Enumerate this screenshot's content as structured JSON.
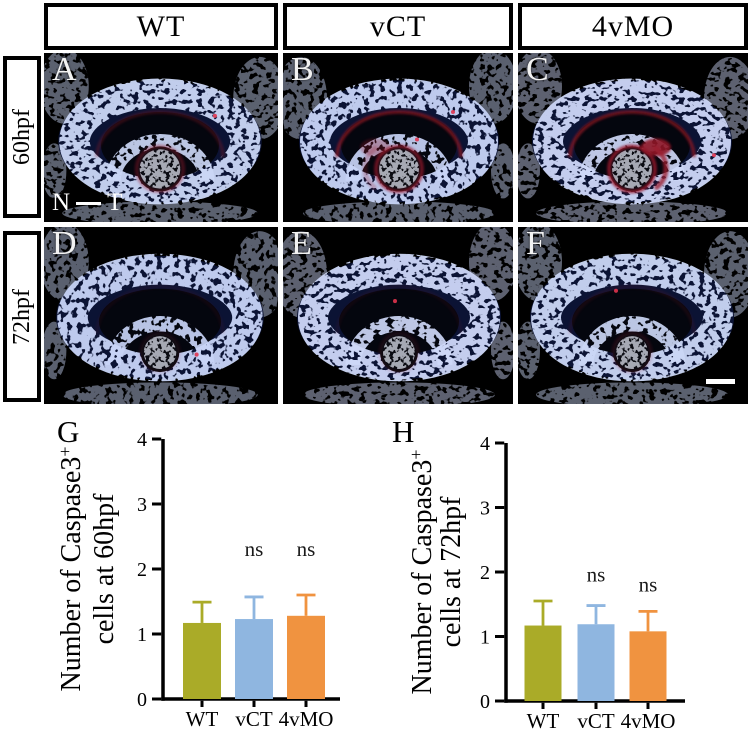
{
  "page_background": "#ffffff",
  "figure": {
    "column_headers": [
      {
        "label": "WT"
      },
      {
        "label": "vCT"
      },
      {
        "label": "4vMO"
      }
    ],
    "row_headers": [
      {
        "label": "60hpf"
      },
      {
        "label": "72hpf"
      }
    ],
    "panels": [
      {
        "letter": "A",
        "row": "60hpf",
        "column": "WT"
      },
      {
        "letter": "B",
        "row": "60hpf",
        "column": "vCT"
      },
      {
        "letter": "C",
        "row": "60hpf",
        "column": "4vMO"
      },
      {
        "letter": "D",
        "row": "72hpf",
        "column": "WT"
      },
      {
        "letter": "E",
        "row": "72hpf",
        "column": "vCT"
      },
      {
        "letter": "F",
        "row": "72hpf",
        "column": "4vMO"
      }
    ],
    "orientation_axis": {
      "left_label": "N",
      "right_label": "T"
    },
    "stain_colors": {
      "nuclei_dapi": "#2a4fd0",
      "caspase3_signal": "#c01830"
    },
    "has_scale_bar_panel": "F"
  },
  "chart_data": [
    {
      "type": "bar",
      "panel_letter": "G",
      "title": "",
      "ylabel": "Number of Caspase3+ cells at 60hpf",
      "ylabel_line1": "Number of Caspase3",
      "ylabel_superscript": "+",
      "ylabel_line2": "cells at 60hpf",
      "xlabel": "",
      "categories": [
        "WT",
        "vCT",
        "4vMO"
      ],
      "values": [
        1.17,
        1.23,
        1.28
      ],
      "errors_up": [
        0.32,
        0.34,
        0.32
      ],
      "bar_colors": [
        "#aaab28",
        "#8fb6e0",
        "#f09340"
      ],
      "axis_color": "#000000",
      "ylim": [
        0,
        4
      ],
      "yticks": [
        0,
        1,
        2,
        3,
        4
      ],
      "grid": false,
      "legend": null,
      "annotations": [
        {
          "category": "vCT",
          "text": "ns",
          "y": 2.2
        },
        {
          "category": "4vMO",
          "text": "ns",
          "y": 2.2
        }
      ]
    },
    {
      "type": "bar",
      "panel_letter": "H",
      "title": "",
      "ylabel": "Number of Caspase3+ cells at 72hpf",
      "ylabel_line1": "Number of Caspase3",
      "ylabel_superscript": "+",
      "ylabel_line2": "cells at 72hpf",
      "xlabel": "",
      "categories": [
        "WT",
        "vCT",
        "4vMO"
      ],
      "values": [
        1.17,
        1.19,
        1.08
      ],
      "errors_up": [
        0.38,
        0.29,
        0.31
      ],
      "bar_colors": [
        "#aaab28",
        "#8fb6e0",
        "#f09340"
      ],
      "axis_color": "#000000",
      "ylim": [
        0,
        4
      ],
      "yticks": [
        0,
        1,
        2,
        3,
        4
      ],
      "grid": false,
      "legend": null,
      "annotations": [
        {
          "category": "vCT",
          "text": "ns",
          "y": 1.85
        },
        {
          "category": "4vMO",
          "text": "ns",
          "y": 1.7
        }
      ]
    }
  ]
}
